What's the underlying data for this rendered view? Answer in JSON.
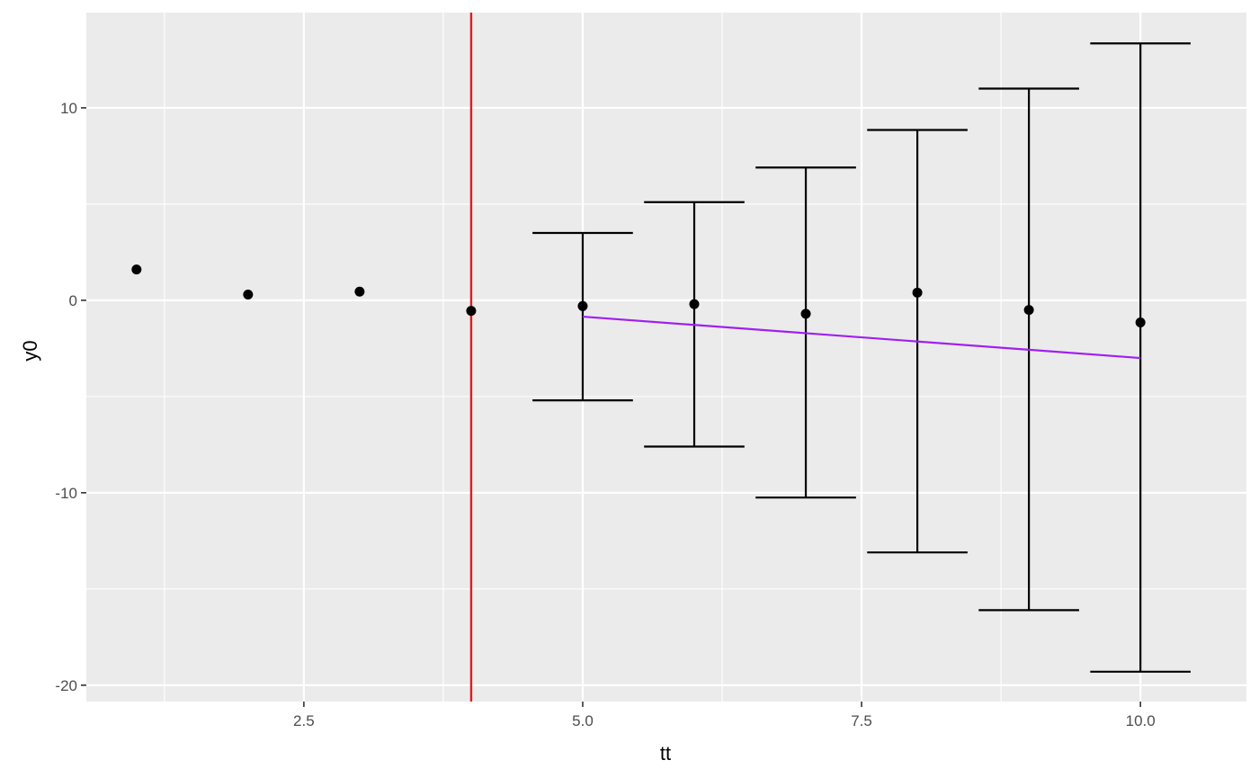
{
  "chart_data": {
    "type": "scatter",
    "xlabel": "tt",
    "ylabel": "y0",
    "xlim": [
      0.55,
      10.95
    ],
    "ylim": [
      -20.85,
      14.95
    ],
    "x_ticks": [
      2.5,
      5.0,
      7.5,
      10.0
    ],
    "x_tick_labels": [
      "2.5",
      "5.0",
      "7.5",
      "10.0"
    ],
    "x_minor_ticks": [
      1.25,
      3.75,
      6.25,
      8.75
    ],
    "y_ticks": [
      10,
      0,
      -10,
      -20
    ],
    "y_tick_labels": [
      "10",
      "0",
      "-10",
      "-20"
    ],
    "y_minor_ticks": [
      5,
      -5,
      -15
    ],
    "grid": true,
    "legend": "none",
    "points": {
      "x": [
        1,
        2,
        3,
        4,
        5,
        6,
        7,
        8,
        9,
        10
      ],
      "y": [
        1.6,
        0.3,
        0.45,
        -0.55,
        -0.3,
        -0.2,
        -0.7,
        0.4,
        -0.5,
        -1.15
      ]
    },
    "error_bars": [
      {
        "x": 5,
        "lower": -5.2,
        "upper": 3.5
      },
      {
        "x": 6,
        "lower": -7.6,
        "upper": 5.1
      },
      {
        "x": 7,
        "lower": -10.25,
        "upper": 6.9
      },
      {
        "x": 8,
        "lower": -13.1,
        "upper": 8.85
      },
      {
        "x": 9,
        "lower": -16.1,
        "upper": 11.0
      },
      {
        "x": 10,
        "lower": -19.3,
        "upper": 13.35
      }
    ],
    "vline": {
      "x": 4,
      "color": "#e41a1c"
    },
    "trend_line": {
      "x": [
        5,
        10
      ],
      "y": [
        -0.85,
        -3.0
      ],
      "color": "#a020f0"
    },
    "colors": {
      "panel": "#ebebeb",
      "grid": "#ffffff",
      "points": "#000000"
    }
  }
}
